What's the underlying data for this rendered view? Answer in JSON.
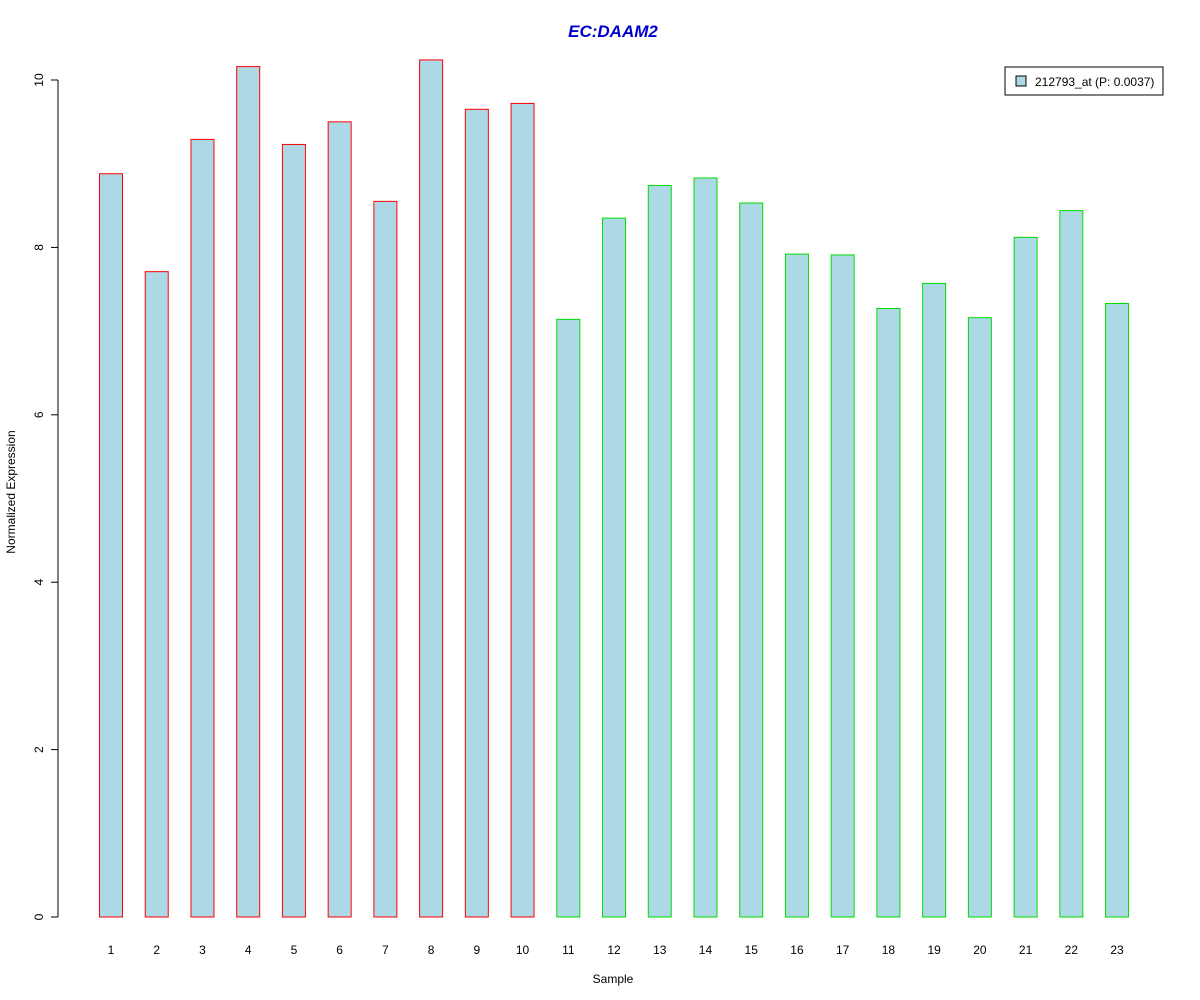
{
  "chart_data": {
    "type": "bar",
    "title": "EC:DAAM2",
    "xlabel": "Sample",
    "ylabel": "Normalized Expression",
    "categories": [
      "1",
      "2",
      "3",
      "4",
      "5",
      "6",
      "7",
      "8",
      "9",
      "10",
      "11",
      "12",
      "13",
      "14",
      "15",
      "16",
      "17",
      "18",
      "19",
      "20",
      "21",
      "22",
      "23"
    ],
    "series": [
      {
        "name": "212793_at (P: 0.0037)",
        "values": [
          8.88,
          7.71,
          9.29,
          10.16,
          9.23,
          9.5,
          8.55,
          10.24,
          9.65,
          9.72,
          7.14,
          8.35,
          8.74,
          8.83,
          8.53,
          7.92,
          7.91,
          7.27,
          7.57,
          7.16,
          8.12,
          8.44,
          7.33
        ]
      }
    ],
    "group_border_colors": [
      "#ff0000",
      "#ff0000",
      "#ff0000",
      "#ff0000",
      "#ff0000",
      "#ff0000",
      "#ff0000",
      "#ff0000",
      "#ff0000",
      "#ff0000",
      "#00dd00",
      "#00dd00",
      "#00dd00",
      "#00dd00",
      "#00dd00",
      "#00dd00",
      "#00dd00",
      "#00dd00",
      "#00dd00",
      "#00dd00",
      "#00dd00",
      "#00dd00",
      "#00dd00"
    ],
    "yticks": [
      0,
      2,
      4,
      6,
      8,
      10
    ],
    "ylim": [
      0,
      10.3
    ],
    "grid": false,
    "legend_position": "top-right",
    "colors": {
      "bar_fill": "#add8e6",
      "title": "#0000cc"
    }
  }
}
